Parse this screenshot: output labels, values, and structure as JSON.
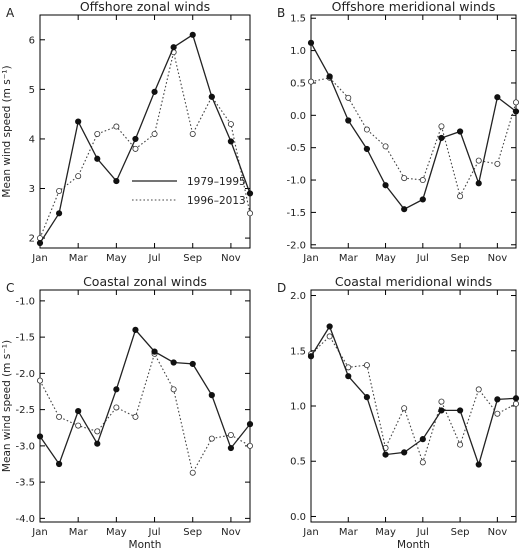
{
  "chart_data": [
    {
      "type": "line",
      "panel_letter": "A",
      "title": "Offshore zonal winds",
      "ylabel": "Mean wind speed (m s⁻¹)",
      "xlabel": "",
      "ylim": [
        1.8,
        6.5
      ],
      "yticks": [
        2,
        3,
        4,
        5,
        6
      ],
      "yticklabels": [
        "2",
        "3",
        "4",
        "5",
        "6"
      ],
      "x": [
        1,
        2,
        3,
        4,
        5,
        6,
        7,
        8,
        9,
        10,
        11,
        12
      ],
      "xlim": [
        1,
        12
      ],
      "xticks": [
        1,
        3,
        5,
        7,
        9,
        11
      ],
      "xticklabels": [
        "Jan",
        "Mar",
        "May",
        "Jul",
        "Sep",
        "Nov"
      ],
      "legend": {
        "position": "lower-right",
        "entries": [
          "1979–1995",
          "1996–2013"
        ]
      },
      "series": [
        {
          "name": "1979–1995",
          "style": "solid",
          "values": [
            1.9,
            2.5,
            4.35,
            3.6,
            3.15,
            4.0,
            4.95,
            5.85,
            6.1,
            4.85,
            3.95,
            2.9
          ]
        },
        {
          "name": "1996–2013",
          "style": "dotted",
          "values": [
            2.0,
            2.95,
            3.25,
            4.1,
            4.25,
            3.8,
            4.1,
            5.75,
            4.1,
            4.85,
            4.3,
            2.5
          ]
        }
      ]
    },
    {
      "type": "line",
      "panel_letter": "B",
      "title": "Offshore meridional winds",
      "ylabel": "",
      "xlabel": "",
      "ylim": [
        -2.05,
        1.55
      ],
      "yticks": [
        -2.0,
        -1.5,
        -1.0,
        -0.5,
        0.0,
        0.5,
        1.0,
        1.5
      ],
      "yticklabels": [
        "-2.0",
        "-1.5",
        "-1.0",
        "-0.5",
        "0.0",
        "0.5",
        "1.0",
        "1.5"
      ],
      "x": [
        1,
        2,
        3,
        4,
        5,
        6,
        7,
        8,
        9,
        10,
        11,
        12
      ],
      "xlim": [
        1,
        12
      ],
      "xticks": [
        1,
        3,
        5,
        7,
        9,
        11
      ],
      "xticklabels": [
        "Jan",
        "Mar",
        "May",
        "Jul",
        "Sep",
        "Nov"
      ],
      "series": [
        {
          "name": "1979–1995",
          "style": "solid",
          "values": [
            1.12,
            0.6,
            -0.08,
            -0.52,
            -1.08,
            -1.45,
            -1.3,
            -0.35,
            -0.25,
            -1.05,
            0.28,
            0.06
          ]
        },
        {
          "name": "1996–2013",
          "style": "dotted",
          "values": [
            0.52,
            0.58,
            0.27,
            -0.22,
            -0.48,
            -0.97,
            -1.0,
            -0.17,
            -1.25,
            -0.7,
            -0.75,
            0.2
          ]
        }
      ]
    },
    {
      "type": "line",
      "panel_letter": "C",
      "title": "Coastal zonal winds",
      "ylabel": "Mean wind speed (m s⁻¹)",
      "xlabel": "Month",
      "ylim": [
        -4.05,
        -0.85
      ],
      "yticks": [
        -4.0,
        -3.5,
        -3.0,
        -2.5,
        -2.0,
        -1.5,
        -1.0
      ],
      "yticklabels": [
        "-4.0",
        "-3.5",
        "-3.0",
        "-2.5",
        "-2.0",
        "-1.5",
        "-1.0"
      ],
      "x": [
        1,
        2,
        3,
        4,
        5,
        6,
        7,
        8,
        9,
        10,
        11,
        12
      ],
      "xlim": [
        1,
        12
      ],
      "xticks": [
        1,
        3,
        5,
        7,
        9,
        11
      ],
      "xticklabels": [
        "Jan",
        "Mar",
        "May",
        "Jul",
        "Sep",
        "Nov"
      ],
      "series": [
        {
          "name": "1979–1995",
          "style": "solid",
          "values": [
            -2.87,
            -3.25,
            -2.52,
            -2.97,
            -2.22,
            -1.4,
            -1.7,
            -1.85,
            -1.87,
            -2.3,
            -3.03,
            -2.7
          ]
        },
        {
          "name": "1996–2013",
          "style": "dotted",
          "values": [
            -2.1,
            -2.6,
            -2.72,
            -2.8,
            -2.47,
            -2.6,
            -1.73,
            -2.22,
            -3.37,
            -2.9,
            -2.85,
            -3.0
          ]
        }
      ]
    },
    {
      "type": "line",
      "panel_letter": "D",
      "title": "Coastal meridional winds",
      "ylabel": "",
      "xlabel": "Month",
      "ylim": [
        -0.05,
        2.05
      ],
      "yticks": [
        0.0,
        0.5,
        1.0,
        1.5,
        2.0
      ],
      "yticklabels": [
        "0.0",
        "0.5",
        "1.0",
        "1.5",
        "2.0"
      ],
      "x": [
        1,
        2,
        3,
        4,
        5,
        6,
        7,
        8,
        9,
        10,
        11,
        12
      ],
      "xlim": [
        1,
        12
      ],
      "xticks": [
        1,
        3,
        5,
        7,
        9,
        11
      ],
      "xticklabels": [
        "Jan",
        "Mar",
        "May",
        "Jul",
        "Sep",
        "Nov"
      ],
      "series": [
        {
          "name": "1979–1995",
          "style": "solid",
          "values": [
            1.45,
            1.72,
            1.27,
            1.08,
            0.56,
            0.58,
            0.7,
            0.96,
            0.96,
            0.47,
            1.06,
            1.07
          ]
        },
        {
          "name": "1996–2013",
          "style": "dotted",
          "values": [
            1.47,
            1.63,
            1.35,
            1.37,
            0.62,
            0.98,
            0.49,
            1.04,
            0.65,
            1.15,
            0.93,
            1.02
          ]
        }
      ]
    }
  ]
}
